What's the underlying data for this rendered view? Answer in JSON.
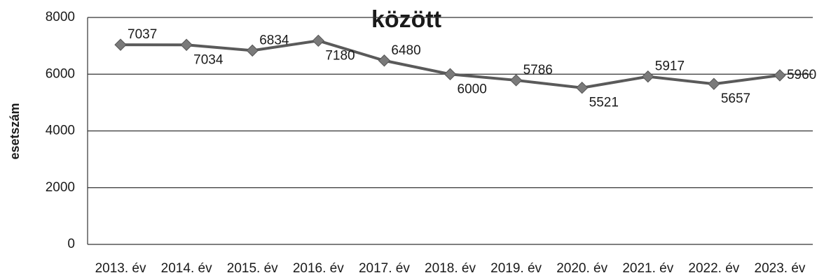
{
  "chart_data": {
    "type": "line",
    "title": "között",
    "y_label": "esetszám",
    "categories": [
      "2013. év",
      "2014. év",
      "2015. év",
      "2016. év",
      "2017. év",
      "2018. év",
      "2019. év",
      "2020. év",
      "2021. év",
      "2022. év",
      "2023. év"
    ],
    "series": [
      {
        "name": "esetszám",
        "color": "#5a5a5a",
        "values": [
          7037,
          7034,
          6834,
          7180,
          6480,
          6000,
          5786,
          5521,
          5917,
          5657,
          5960
        ]
      }
    ],
    "ylim": [
      0,
      8000
    ],
    "yticks": [
      0,
      2000,
      4000,
      6000,
      8000
    ],
    "grid": true
  }
}
